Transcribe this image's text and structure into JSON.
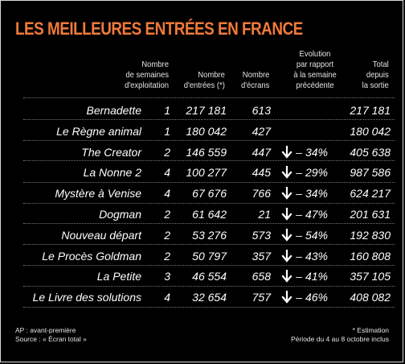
{
  "title": "LES MEILLEURES ENTRÉES EN FRANCE",
  "headers": {
    "weeks": "Nombre\nde semaines\nd'exploitation",
    "entries": "Nombre\nd'entrées (*)",
    "screens": "Nombre\nd'écrans",
    "evolution": "Evolution\npar rapport\nà la semaine\nprécédente",
    "total": "Total\ndepuis\nla sortie"
  },
  "rows": [
    {
      "film": "Bernadette",
      "weeks": "1",
      "entries": "217 181",
      "screens": "613",
      "evolution": "",
      "trend": "",
      "total": "217 181"
    },
    {
      "film": "Le Règne animal",
      "weeks": "1",
      "entries": "180 042",
      "screens": "427",
      "evolution": "",
      "trend": "",
      "total": "180 042"
    },
    {
      "film": "The Creator",
      "weeks": "2",
      "entries": "146 559",
      "screens": "447",
      "evolution": "– 34%",
      "trend": "down",
      "total": "405 638"
    },
    {
      "film": "La Nonne 2",
      "weeks": "4",
      "entries": "100 277",
      "screens": "445",
      "evolution": "– 29%",
      "trend": "down",
      "total": "987 586"
    },
    {
      "film": "Mystère à Venise",
      "weeks": "4",
      "entries": "67 676",
      "screens": "766",
      "evolution": "– 34%",
      "trend": "down",
      "total": "624 217"
    },
    {
      "film": "Dogman",
      "weeks": "2",
      "entries": "61 642",
      "screens": "21",
      "evolution": "– 47%",
      "trend": "down",
      "total": "201 631"
    },
    {
      "film": "Nouveau départ",
      "weeks": "2",
      "entries": "53 276",
      "screens": "573",
      "evolution": "– 54%",
      "trend": "down",
      "total": "192 830"
    },
    {
      "film": "Le Procès Goldman",
      "weeks": "2",
      "entries": "50 797",
      "screens": "357",
      "evolution": "– 43%",
      "trend": "down",
      "total": "160 808"
    },
    {
      "film": "La Petite",
      "weeks": "3",
      "entries": "46 554",
      "screens": "658",
      "evolution": "– 41%",
      "trend": "down",
      "total": "357 105"
    },
    {
      "film": "Le Livre des solutions",
      "weeks": "4",
      "entries": "32 654",
      "screens": "757",
      "evolution": "– 46%",
      "trend": "down",
      "total": "408 082"
    }
  ],
  "footer": {
    "ap_note": "AP : avant-première",
    "source": "Source : « Écran total »",
    "estimation": "* Estimation",
    "period": "Période du 4 au 8 octobre inclus"
  },
  "colors": {
    "title": "#f07a3a",
    "text": "#ffffff",
    "background": "#000000"
  },
  "icons": {
    "trend_down": "arrow-down-icon"
  }
}
